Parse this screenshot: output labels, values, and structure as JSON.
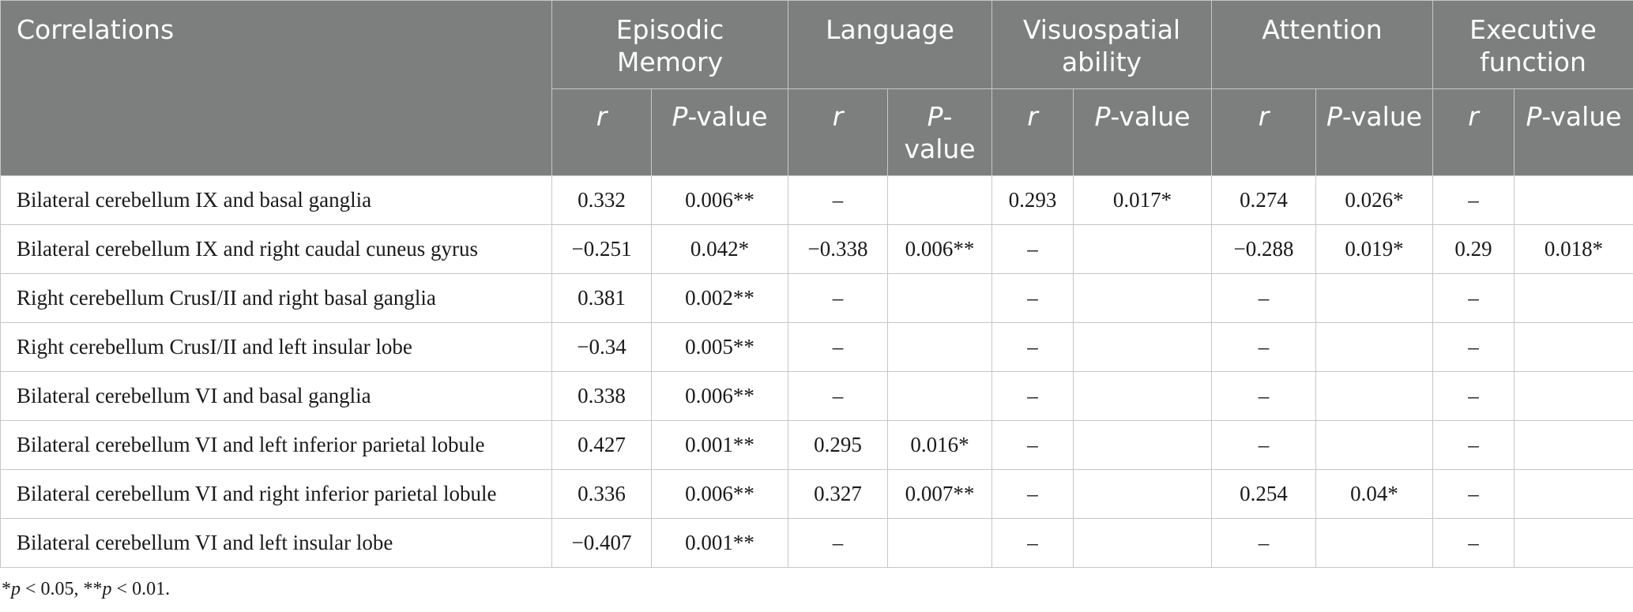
{
  "header": {
    "first": "Correlations",
    "groups": [
      {
        "name": "Episodic Memory",
        "r": "r",
        "p_italic": "P",
        "p_rest": "-value"
      },
      {
        "name": "Language",
        "r": "r",
        "p_italic": "P",
        "p_rest": "-value"
      },
      {
        "name": "Visuospatial ability",
        "r": "r",
        "p_italic": "P",
        "p_rest": "-value"
      },
      {
        "name": "Attention",
        "r": "r",
        "p_italic": "P",
        "p_rest": "-value"
      },
      {
        "name": "Executive function",
        "r": "r",
        "p_italic": "P",
        "p_rest": "-value"
      }
    ]
  },
  "rows": [
    {
      "label": "Bilateral cerebellum IX and basal ganglia",
      "cells": [
        "0.332",
        "0.006**",
        "–",
        "",
        "0.293",
        "0.017*",
        "0.274",
        "0.026*",
        "–",
        ""
      ]
    },
    {
      "label": "Bilateral cerebellum IX and right caudal cuneus gyrus",
      "cells": [
        "−0.251",
        "0.042*",
        "−0.338",
        "0.006**",
        "–",
        "",
        "−0.288",
        "0.019*",
        "0.29",
        "0.018*"
      ]
    },
    {
      "label": "Right cerebellum CrusI/II and right basal ganglia",
      "cells": [
        "0.381",
        "0.002**",
        "–",
        "",
        "–",
        "",
        "–",
        "",
        "–",
        ""
      ]
    },
    {
      "label": "Right cerebellum CrusI/II and left insular lobe",
      "cells": [
        "−0.34",
        "0.005**",
        "–",
        "",
        "–",
        "",
        "–",
        "",
        "–",
        ""
      ]
    },
    {
      "label": "Bilateral cerebellum VI and basal ganglia",
      "cells": [
        "0.338",
        "0.006**",
        "–",
        "",
        "–",
        "",
        "–",
        "",
        "–",
        ""
      ]
    },
    {
      "label": "Bilateral cerebellum VI and left inferior parietal lobule",
      "cells": [
        "0.427",
        "0.001**",
        "0.295",
        "0.016*",
        "–",
        "",
        "–",
        "",
        "–",
        ""
      ]
    },
    {
      "label": "Bilateral cerebellum VI and right inferior parietal lobule",
      "cells": [
        "0.336",
        "0.006**",
        "0.327",
        "0.007**",
        "–",
        "",
        "0.254",
        "0.04*",
        "–",
        ""
      ]
    },
    {
      "label": "Bilateral cerebellum VI and left insular lobe",
      "cells": [
        "−0.407",
        "0.001**",
        "–",
        "",
        "–",
        "",
        "–",
        "",
        "–",
        ""
      ]
    }
  ],
  "footnote": {
    "part1": "*",
    "p1": "p",
    "part2": " < 0.05, **",
    "p2": "p",
    "part3": " < 0.01."
  }
}
